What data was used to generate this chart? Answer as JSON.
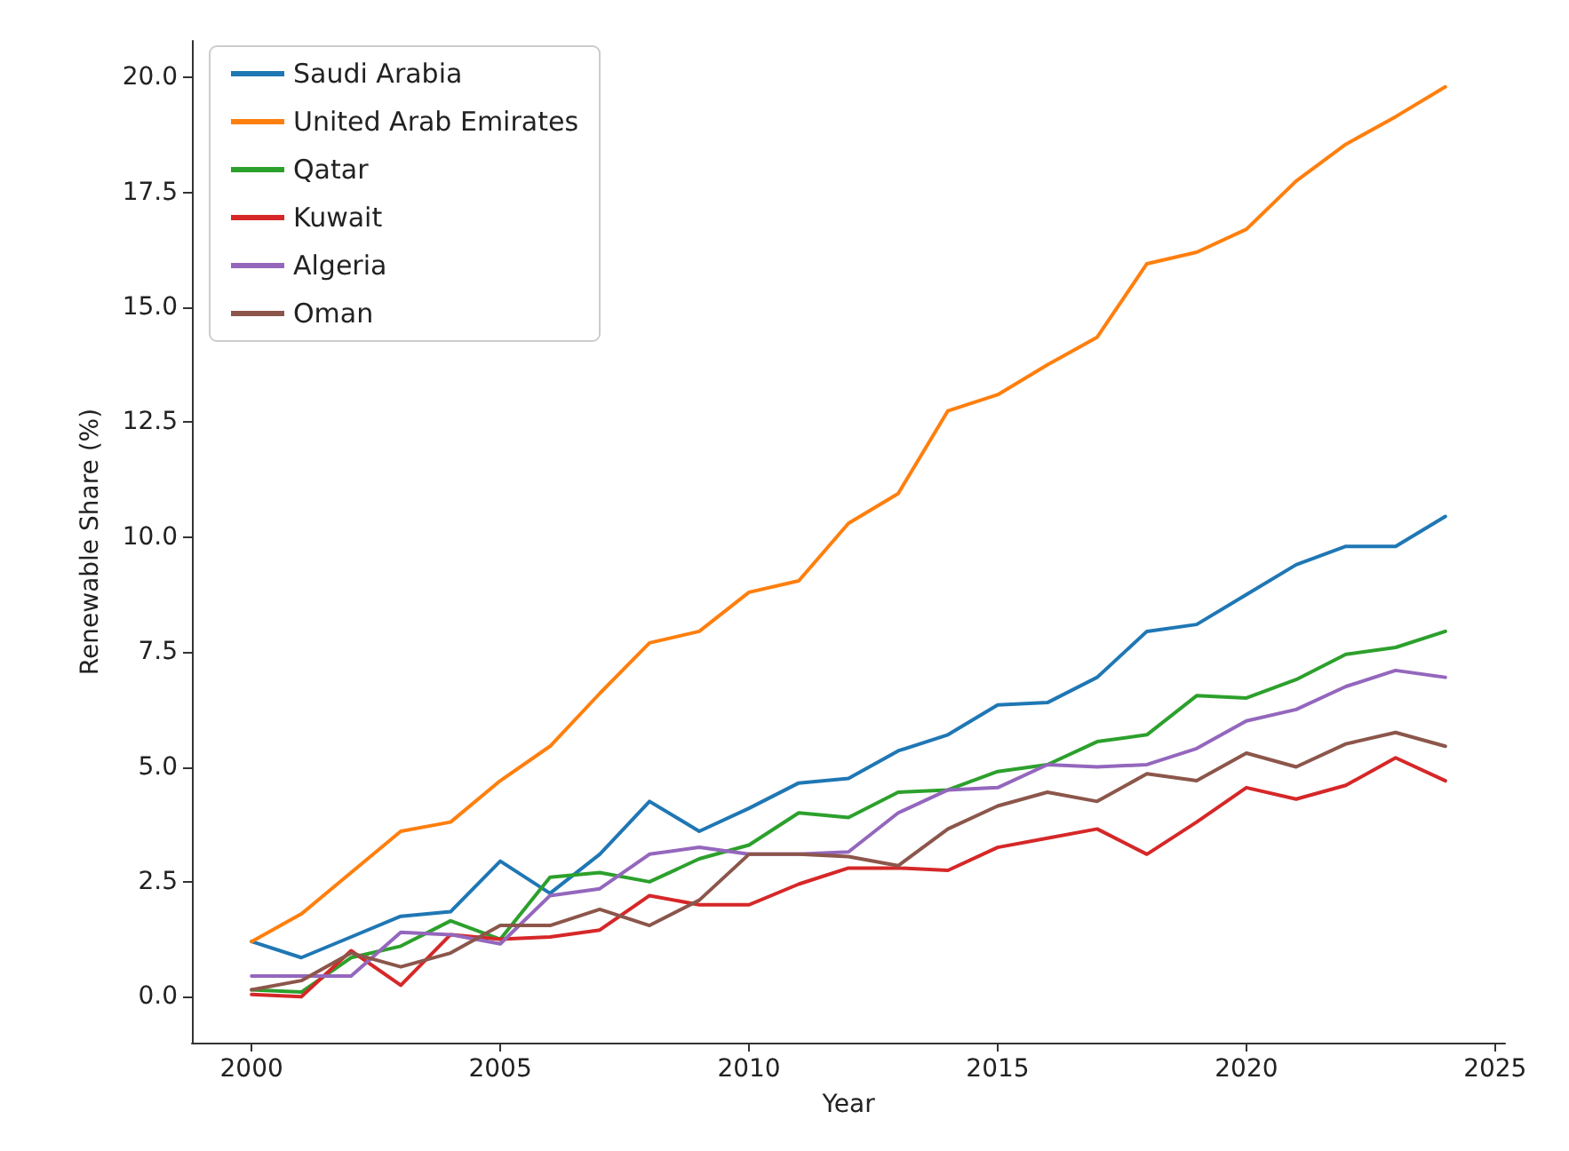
{
  "chart_data": {
    "type": "line",
    "xlabel": "Year",
    "ylabel": "Renewable Share (%)",
    "x": [
      2000,
      2001,
      2002,
      2003,
      2004,
      2005,
      2006,
      2007,
      2008,
      2009,
      2010,
      2011,
      2012,
      2013,
      2014,
      2015,
      2016,
      2017,
      2018,
      2019,
      2020,
      2021,
      2022,
      2023,
      2024
    ],
    "series": [
      {
        "name": "Saudi Arabia",
        "color": "#1f77b4",
        "values": [
          1.2,
          0.85,
          1.3,
          1.75,
          1.85,
          2.95,
          2.25,
          3.1,
          4.25,
          3.6,
          4.1,
          4.65,
          4.75,
          5.35,
          5.7,
          6.35,
          6.4,
          6.95,
          7.95,
          8.1,
          8.75,
          9.4,
          9.8,
          9.8,
          10.45
        ]
      },
      {
        "name": "United Arab Emirates",
        "color": "#ff7f0e",
        "values": [
          1.2,
          1.8,
          2.7,
          3.6,
          3.8,
          4.7,
          5.45,
          6.6,
          7.7,
          7.95,
          8.8,
          9.05,
          10.3,
          10.95,
          12.75,
          13.1,
          13.75,
          14.35,
          15.95,
          16.2,
          16.7,
          17.75,
          18.55,
          19.15,
          19.8
        ]
      },
      {
        "name": "Qatar",
        "color": "#2ca02c",
        "values": [
          0.15,
          0.1,
          0.85,
          1.1,
          1.65,
          1.25,
          2.6,
          2.7,
          2.5,
          3.0,
          3.3,
          4.0,
          3.9,
          4.45,
          4.5,
          4.9,
          5.05,
          5.55,
          5.7,
          6.55,
          6.5,
          6.9,
          7.45,
          7.6,
          7.95
        ]
      },
      {
        "name": "Kuwait",
        "color": "#d62728",
        "values": [
          0.05,
          0.0,
          1.0,
          0.25,
          1.35,
          1.25,
          1.3,
          1.45,
          2.2,
          2.0,
          2.0,
          2.45,
          2.8,
          2.8,
          2.75,
          3.25,
          3.45,
          3.65,
          3.1,
          3.8,
          4.55,
          4.3,
          4.6,
          5.2,
          4.7
        ]
      },
      {
        "name": "Algeria",
        "color": "#9467bd",
        "values": [
          0.45,
          0.45,
          0.45,
          1.4,
          1.35,
          1.15,
          2.2,
          2.35,
          3.1,
          3.25,
          3.1,
          3.1,
          3.15,
          4.0,
          4.5,
          4.55,
          5.05,
          5.0,
          5.05,
          5.4,
          6.0,
          6.25,
          6.75,
          7.1,
          6.95
        ]
      },
      {
        "name": "Oman",
        "color": "#8c564b",
        "values": [
          0.15,
          0.35,
          0.95,
          0.65,
          0.95,
          1.55,
          1.55,
          1.9,
          1.55,
          2.1,
          3.1,
          3.1,
          3.05,
          2.85,
          3.65,
          4.15,
          4.45,
          4.25,
          4.85,
          4.7,
          5.3,
          5.0,
          5.5,
          5.75,
          5.45
        ]
      }
    ],
    "xlim": [
      1998.8,
      2025.2
    ],
    "xticks": [
      2000,
      2005,
      2010,
      2015,
      2020,
      2025
    ],
    "ylim": [
      -1.0,
      20.8
    ],
    "yticks": [
      {
        "value": 0,
        "label": "0.0"
      },
      {
        "value": 2.5,
        "label": "2.5"
      },
      {
        "value": 5,
        "label": "5.0"
      },
      {
        "value": 7.5,
        "label": "7.5"
      },
      {
        "value": 10,
        "label": "10.0"
      },
      {
        "value": 12.5,
        "label": "12.5"
      },
      {
        "value": 15,
        "label": "15.0"
      },
      {
        "value": 17.5,
        "label": "17.5"
      },
      {
        "value": 20,
        "label": "20.0"
      }
    ],
    "grid": false,
    "legend": "top left",
    "marker": "none",
    "line_style": "solid"
  }
}
